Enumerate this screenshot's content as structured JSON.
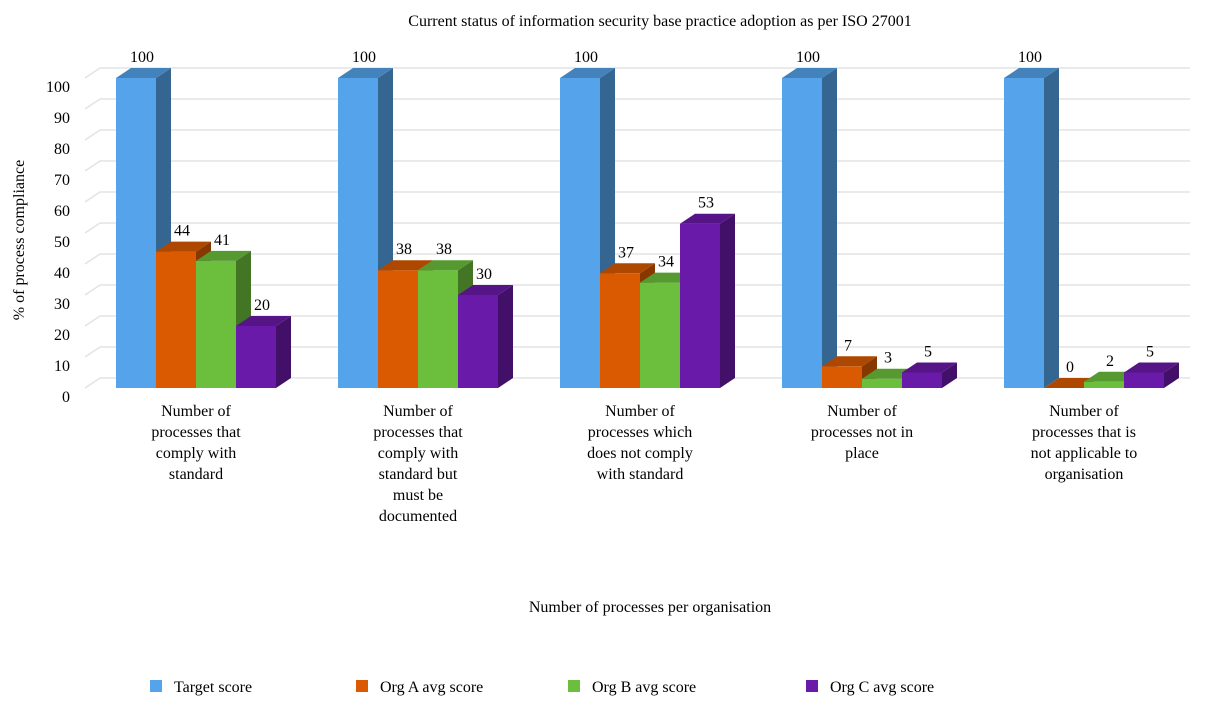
{
  "chart_data": {
    "type": "bar3d",
    "title": "Current status of information security base practice adoption as per ISO 27001",
    "x_label": "Number of processes per organisation",
    "y_label": "% of process compliance",
    "categories": [
      "Number of processes that comply with standard",
      "Number of processes that comply with standard but must be documented",
      "Number of processes which does not comply with standard",
      "Number of processes not in place",
      "Number of processes that is not applicable to organisation"
    ],
    "series": [
      {
        "name": "Target score",
        "color": "#55a3ea",
        "values": [
          100,
          100,
          100,
          100,
          100
        ]
      },
      {
        "name": "Org A avg score",
        "color": "#d95a00",
        "values": [
          44,
          38,
          37,
          7,
          0
        ]
      },
      {
        "name": "Org B avg score",
        "color": "#6bbf3c",
        "values": [
          41,
          38,
          34,
          3,
          2
        ]
      },
      {
        "name": "Org C avg score",
        "color": "#6a1aa8",
        "values": [
          20,
          30,
          53,
          5,
          5
        ]
      }
    ],
    "ylim": [
      0,
      100
    ],
    "yticks": [
      0,
      10,
      20,
      30,
      40,
      50,
      60,
      70,
      80,
      90,
      100
    ],
    "grid": true,
    "legend": "bottom"
  }
}
